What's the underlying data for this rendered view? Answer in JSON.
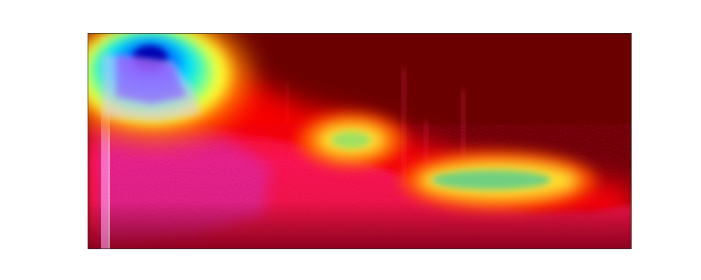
{
  "image": {
    "kind": "heatmap-overlay-on-spectrogram",
    "colormap": "jet",
    "colors": {
      "background": "#ffffff",
      "frame": "#222222",
      "cold_region": "#6b0000",
      "spectrogram_tint": "#ff2a6a",
      "hot_spot_core": "#00008b",
      "hot_spot_mid": "#00d0ff",
      "hot_spot_ring": "#ffff40"
    },
    "axes_visible": false,
    "tick_labels_visible": false,
    "title_visible": false
  }
}
